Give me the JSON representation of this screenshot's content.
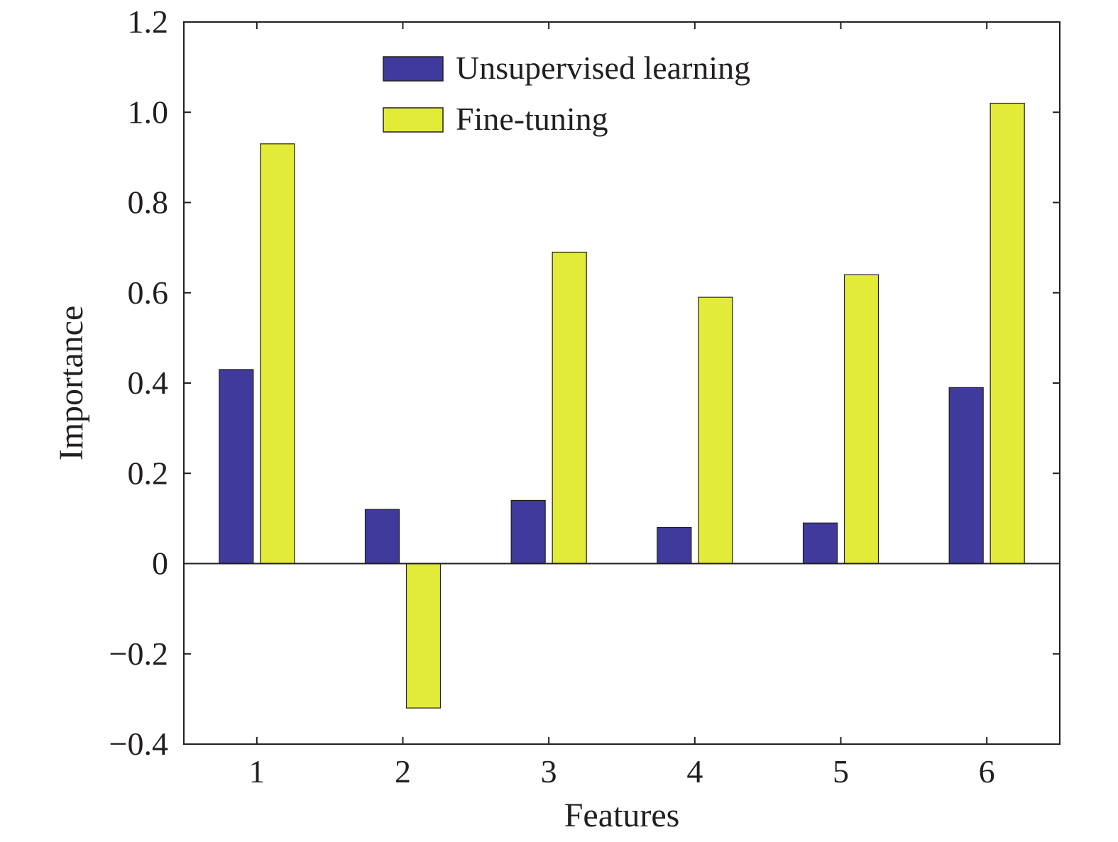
{
  "chart_data": {
    "type": "bar",
    "title": "",
    "xlabel": "Features",
    "ylabel": "Importance",
    "categories": [
      "1",
      "2",
      "3",
      "4",
      "5",
      "6"
    ],
    "series": [
      {
        "name": "Unsupervised learning",
        "color": "#3f3a9b",
        "values": [
          0.43,
          0.12,
          0.14,
          0.08,
          0.09,
          0.39
        ]
      },
      {
        "name": "Fine-tuning",
        "color": "#e2eb37",
        "values": [
          0.93,
          -0.32,
          0.69,
          0.59,
          0.64,
          1.02
        ]
      }
    ],
    "ylim": [
      -0.4,
      1.2
    ],
    "yticks": [
      -0.4,
      -0.2,
      0,
      0.2,
      0.4,
      0.6,
      0.8,
      1.0,
      1.2
    ],
    "ytick_labels": [
      "−0.4",
      "−0.2",
      "0",
      "0.2",
      "0.4",
      "0.6",
      "0.8",
      "1.0",
      "1.2"
    ],
    "grid": false,
    "legend_position": "top-center"
  }
}
